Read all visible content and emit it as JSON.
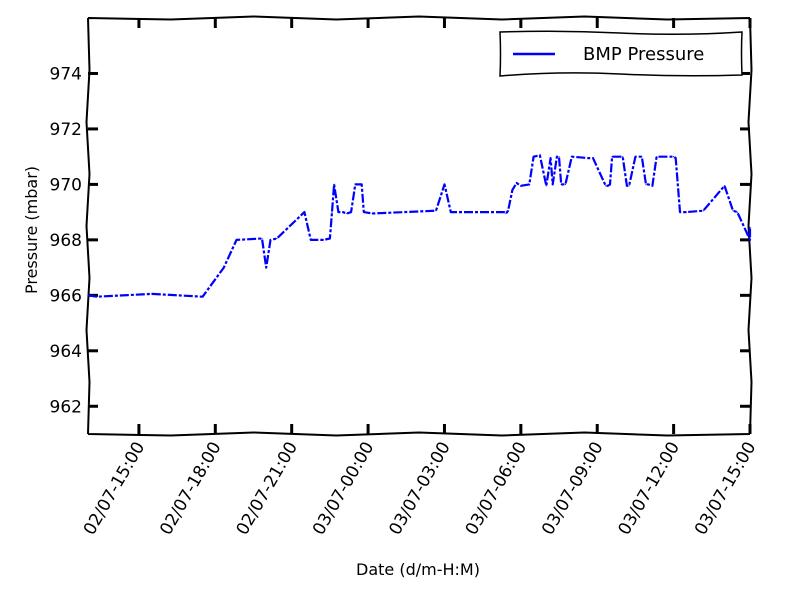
{
  "chart_data": {
    "type": "line",
    "title": "",
    "xlabel": "Date (d/m-H:M)",
    "ylabel": "Pressure (mbar)",
    "ylim": [
      961,
      976
    ],
    "xlim": [
      "02/07-13:00",
      "03/07-15:00"
    ],
    "yticks": [
      962,
      964,
      966,
      968,
      970,
      972,
      974
    ],
    "ytick_labels": [
      "962",
      "964",
      "966",
      "968",
      "970",
      "972",
      "974"
    ],
    "xticks": [
      "02/07-15:00",
      "02/07-18:00",
      "02/07-21:00",
      "03/07-00:00",
      "03/07-03:00",
      "03/07-06:00",
      "03/07-09:00",
      "03/07-12:00",
      "03/07-15:00"
    ],
    "xtick_labels": [
      "02/07-15:00",
      "02/07-18:00",
      "02/07-21:00",
      "03/07-00:00",
      "03/07-03:00",
      "03/07-06:00",
      "03/07-09:00",
      "03/07-12:00",
      "03/07-15:00"
    ],
    "grid": false,
    "legend_position": "top-right",
    "series": [
      {
        "name": "BMP Pressure",
        "color": "#0000ff",
        "x": [
          "02/07-13:00",
          "02/07-13:20",
          "02/07-15:30",
          "02/07-17:30",
          "02/07-18:20",
          "02/07-18:50",
          "02/07-19:50",
          "02/07-20:00",
          "02/07-20:10",
          "02/07-20:25",
          "02/07-21:30",
          "02/07-21:45",
          "02/07-22:15",
          "02/07-22:30",
          "02/07-22:35",
          "02/07-22:40",
          "02/07-22:50",
          "02/07-23:00",
          "02/07-23:10",
          "02/07-23:20",
          "02/07-23:30",
          "02/07-23:45",
          "02/07-23:50",
          "03/07-00:10",
          "03/07-02:40",
          "03/07-03:00",
          "03/07-03:15",
          "03/07-04:00",
          "03/07-05:20",
          "03/07-05:25",
          "03/07-05:30",
          "03/07-05:40",
          "03/07-05:50",
          "03/07-06:00",
          "03/07-06:20",
          "03/07-06:30",
          "03/07-06:45",
          "03/07-07:00",
          "03/07-07:10",
          "03/07-07:15",
          "03/07-07:25",
          "03/07-07:30",
          "03/07-07:35",
          "03/07-07:40",
          "03/07-07:45",
          "03/07-08:00",
          "03/07-08:40",
          "03/07-08:50",
          "03/07-09:20",
          "03/07-09:25",
          "03/07-09:30",
          "03/07-09:35",
          "03/07-10:00",
          "03/07-10:10",
          "03/07-10:15",
          "03/07-10:30",
          "03/07-10:45",
          "03/07-10:55",
          "03/07-11:00",
          "03/07-11:10",
          "03/07-11:20",
          "03/07-12:00",
          "03/07-12:05",
          "03/07-12:15",
          "03/07-12:30",
          "03/07-13:10",
          "03/07-14:00",
          "03/07-14:20",
          "03/07-14:30",
          "03/07-15:00",
          "03/07-15:05"
        ],
        "y": [
          966.0,
          965.95,
          966.05,
          965.95,
          967.0,
          968.0,
          968.05,
          967.0,
          968.0,
          968.05,
          969.0,
          968.0,
          968.0,
          968.05,
          969.0,
          970.0,
          969.0,
          969.0,
          968.95,
          969.0,
          970.0,
          970.0,
          969.0,
          968.95,
          969.05,
          970.0,
          969.0,
          969.0,
          969.0,
          968.95,
          969.05,
          969.8,
          970.05,
          969.95,
          970.0,
          971.0,
          971.05,
          969.95,
          970.95,
          970.0,
          971.0,
          971.0,
          970.0,
          970.0,
          970.0,
          971.0,
          970.95,
          970.95,
          969.95,
          969.95,
          970.0,
          971.0,
          971.0,
          969.95,
          969.95,
          971.0,
          971.0,
          970.0,
          970.0,
          969.95,
          971.0,
          971.0,
          970.95,
          969.0,
          969.0,
          969.05,
          969.95,
          969.05,
          969.0,
          968.0,
          968.45
        ]
      }
    ]
  }
}
